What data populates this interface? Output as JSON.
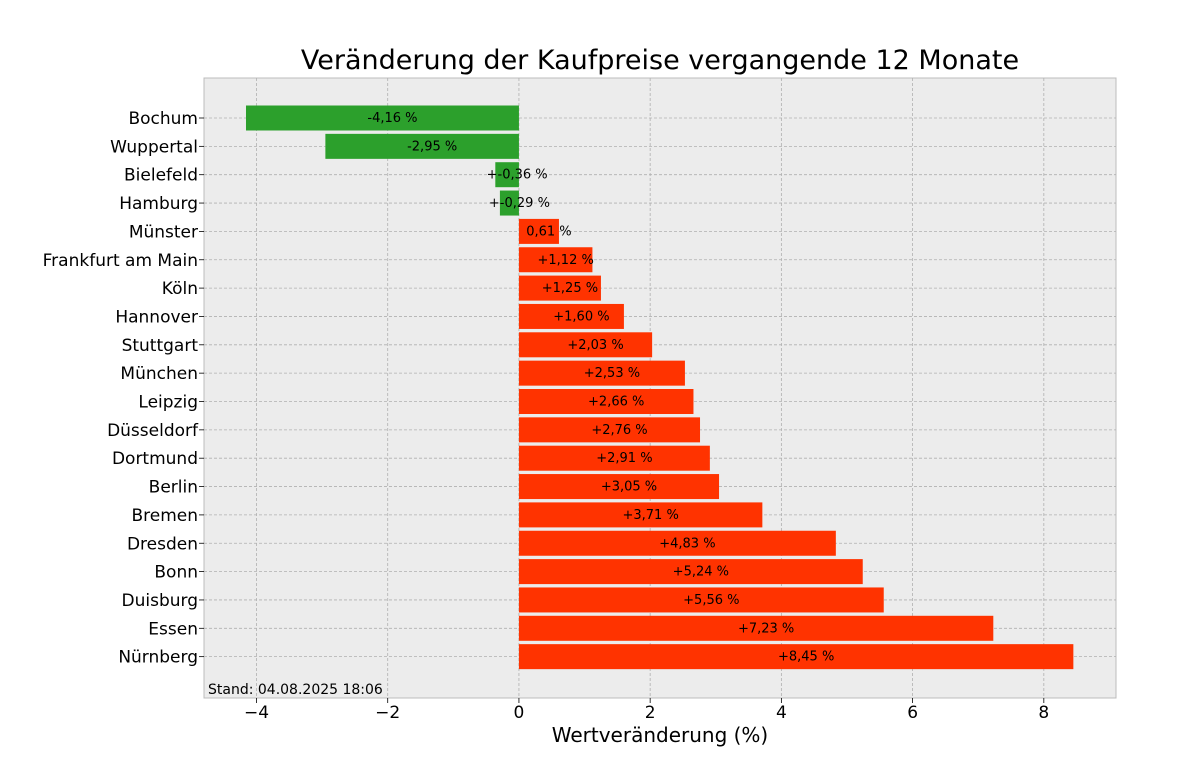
{
  "chart_data": {
    "type": "bar",
    "orientation": "horizontal",
    "title": "Veränderung der Kaufpreise vergangende 12 Monate",
    "xlabel": "Wertveränderung (%)",
    "ylabel": "",
    "xlim": [
      -4.8,
      9.1
    ],
    "xticks": [
      -4,
      -2,
      0,
      2,
      4,
      6,
      8
    ],
    "xtick_labels": [
      "−4",
      "−2",
      "0",
      "2",
      "4",
      "6",
      "8"
    ],
    "grid": true,
    "colors": {
      "negative": "#2ca02c",
      "positive": "#ff3300",
      "background": "#ececec"
    },
    "categories": [
      "Bochum",
      "Wuppertal",
      "Bielefeld",
      "Hamburg",
      "Münster",
      "Frankfurt am Main",
      "Köln",
      "Hannover",
      "Stuttgart",
      "München",
      "Leipzig",
      "Düsseldorf",
      "Dortmund",
      "Berlin",
      "Bremen",
      "Dresden",
      "Bonn",
      "Duisburg",
      "Essen",
      "Nürnberg"
    ],
    "values": [
      -4.16,
      -2.95,
      -0.36,
      -0.29,
      0.61,
      1.12,
      1.25,
      1.6,
      2.03,
      2.53,
      2.66,
      2.76,
      2.91,
      3.05,
      3.71,
      4.83,
      5.24,
      5.56,
      7.23,
      8.45
    ],
    "labels": [
      "-4,16 %",
      "-2,95 %",
      "+-0,36 %",
      "+-0,29 %",
      "0,61 %",
      "+1,12 %",
      "+1,25 %",
      "+1,60 %",
      "+2,03 %",
      "+2,53 %",
      "+2,66 %",
      "+2,76 %",
      "+2,91 %",
      "+3,05 %",
      "+3,71 %",
      "+4,83 %",
      "+5,24 %",
      "+5,56 %",
      "+7,23 %",
      "+8,45 %"
    ],
    "annotation": "Stand: 04.08.2025 18:06"
  }
}
